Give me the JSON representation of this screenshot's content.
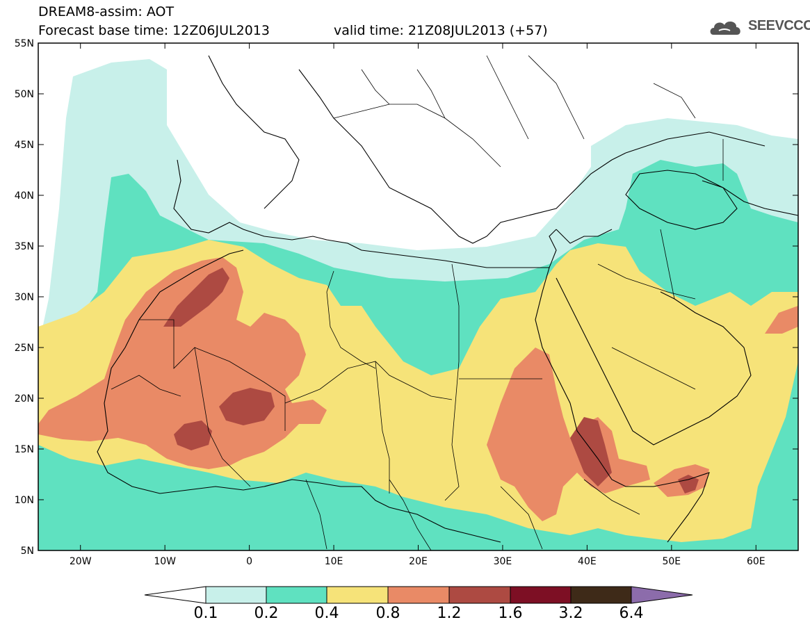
{
  "header": {
    "line1": "DREAM8-assim: AOT",
    "line2_left": "Forecast base time: 12Z06JUL2013",
    "line2_right": "valid time: 21Z08JUL2013 (+57)"
  },
  "logo": {
    "text": "SEEVCCC",
    "icon": "cloud-icon"
  },
  "map": {
    "lat_labels": [
      "55N",
      "50N",
      "45N",
      "40N",
      "35N",
      "30N",
      "25N",
      "20N",
      "15N",
      "10N",
      "5N"
    ],
    "lon_labels": [
      "20W",
      "10W",
      "0",
      "10E",
      "20E",
      "30E",
      "40E",
      "50E",
      "60E"
    ],
    "lon_range": [
      -25,
      65
    ],
    "lat_range": [
      5,
      55
    ],
    "field": "AOT"
  },
  "colorbar": {
    "levels": [
      "0.1",
      "0.2",
      "0.4",
      "0.8",
      "1.2",
      "1.6",
      "3.2",
      "6.4"
    ],
    "colors": {
      "c0": "#c8f0ea",
      "c1": "#5fe1c0",
      "c2": "#f6e379",
      "c3": "#e98a66",
      "c4": "#ad4a42",
      "c5": "#7d0f24",
      "c6": "#3e2a18",
      "c7": "#8c6cab"
    }
  }
}
